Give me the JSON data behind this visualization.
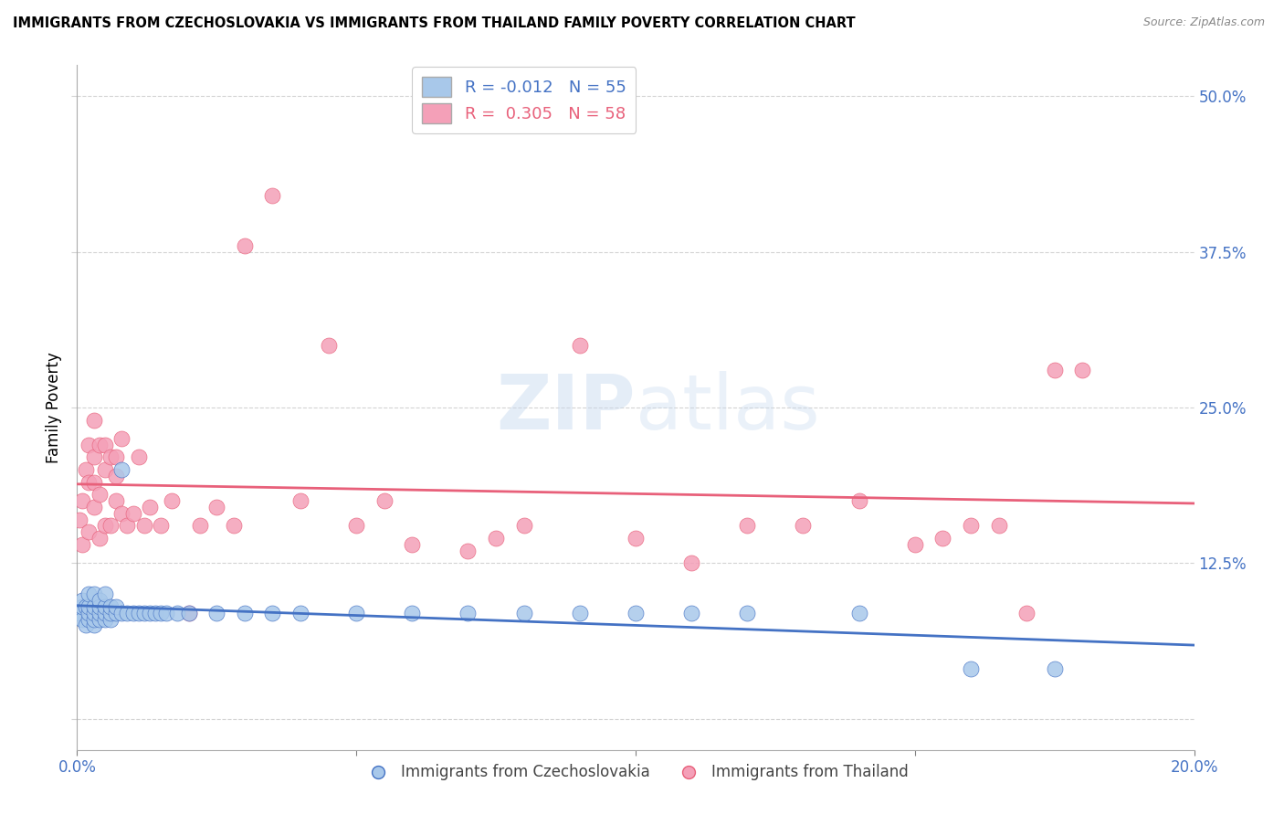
{
  "title": "IMMIGRANTS FROM CZECHOSLOVAKIA VS IMMIGRANTS FROM THAILAND FAMILY POVERTY CORRELATION CHART",
  "source": "Source: ZipAtlas.com",
  "ylabel": "Family Poverty",
  "ytick_values": [
    0.0,
    0.125,
    0.25,
    0.375,
    0.5
  ],
  "xlim": [
    0,
    0.2
  ],
  "ylim": [
    -0.025,
    0.525
  ],
  "color_czech": "#a8c8ea",
  "color_thai": "#f4a0b8",
  "line_color_czech": "#4472c4",
  "line_color_thai": "#e8607a",
  "background_color": "#ffffff",
  "czech_x": [
    0.0005,
    0.001,
    0.001,
    0.001,
    0.0015,
    0.0015,
    0.002,
    0.002,
    0.002,
    0.002,
    0.003,
    0.003,
    0.003,
    0.003,
    0.003,
    0.004,
    0.004,
    0.004,
    0.004,
    0.005,
    0.005,
    0.005,
    0.005,
    0.006,
    0.006,
    0.006,
    0.007,
    0.007,
    0.008,
    0.008,
    0.009,
    0.01,
    0.011,
    0.012,
    0.013,
    0.014,
    0.015,
    0.016,
    0.018,
    0.02,
    0.025,
    0.03,
    0.035,
    0.04,
    0.05,
    0.06,
    0.07,
    0.08,
    0.09,
    0.1,
    0.11,
    0.12,
    0.14,
    0.16,
    0.175
  ],
  "czech_y": [
    0.085,
    0.08,
    0.09,
    0.095,
    0.075,
    0.09,
    0.08,
    0.085,
    0.09,
    0.1,
    0.075,
    0.08,
    0.085,
    0.09,
    0.1,
    0.08,
    0.085,
    0.09,
    0.095,
    0.08,
    0.085,
    0.09,
    0.1,
    0.08,
    0.085,
    0.09,
    0.085,
    0.09,
    0.085,
    0.2,
    0.085,
    0.085,
    0.085,
    0.085,
    0.085,
    0.085,
    0.085,
    0.085,
    0.085,
    0.085,
    0.085,
    0.085,
    0.085,
    0.085,
    0.085,
    0.085,
    0.085,
    0.085,
    0.085,
    0.085,
    0.085,
    0.085,
    0.085,
    0.04,
    0.04
  ],
  "thai_x": [
    0.0005,
    0.001,
    0.001,
    0.0015,
    0.002,
    0.002,
    0.002,
    0.003,
    0.003,
    0.003,
    0.003,
    0.004,
    0.004,
    0.004,
    0.005,
    0.005,
    0.005,
    0.006,
    0.006,
    0.007,
    0.007,
    0.007,
    0.008,
    0.008,
    0.009,
    0.01,
    0.011,
    0.012,
    0.013,
    0.015,
    0.017,
    0.02,
    0.022,
    0.025,
    0.028,
    0.03,
    0.035,
    0.04,
    0.045,
    0.05,
    0.055,
    0.06,
    0.07,
    0.075,
    0.08,
    0.09,
    0.1,
    0.11,
    0.12,
    0.13,
    0.14,
    0.15,
    0.155,
    0.16,
    0.165,
    0.17,
    0.175,
    0.18
  ],
  "thai_y": [
    0.16,
    0.14,
    0.175,
    0.2,
    0.15,
    0.19,
    0.22,
    0.17,
    0.21,
    0.24,
    0.19,
    0.18,
    0.22,
    0.145,
    0.2,
    0.22,
    0.155,
    0.21,
    0.155,
    0.175,
    0.21,
    0.195,
    0.225,
    0.165,
    0.155,
    0.165,
    0.21,
    0.155,
    0.17,
    0.155,
    0.175,
    0.085,
    0.155,
    0.17,
    0.155,
    0.38,
    0.42,
    0.175,
    0.3,
    0.155,
    0.175,
    0.14,
    0.135,
    0.145,
    0.155,
    0.3,
    0.145,
    0.125,
    0.155,
    0.155,
    0.175,
    0.14,
    0.145,
    0.155,
    0.155,
    0.085,
    0.28,
    0.28
  ]
}
